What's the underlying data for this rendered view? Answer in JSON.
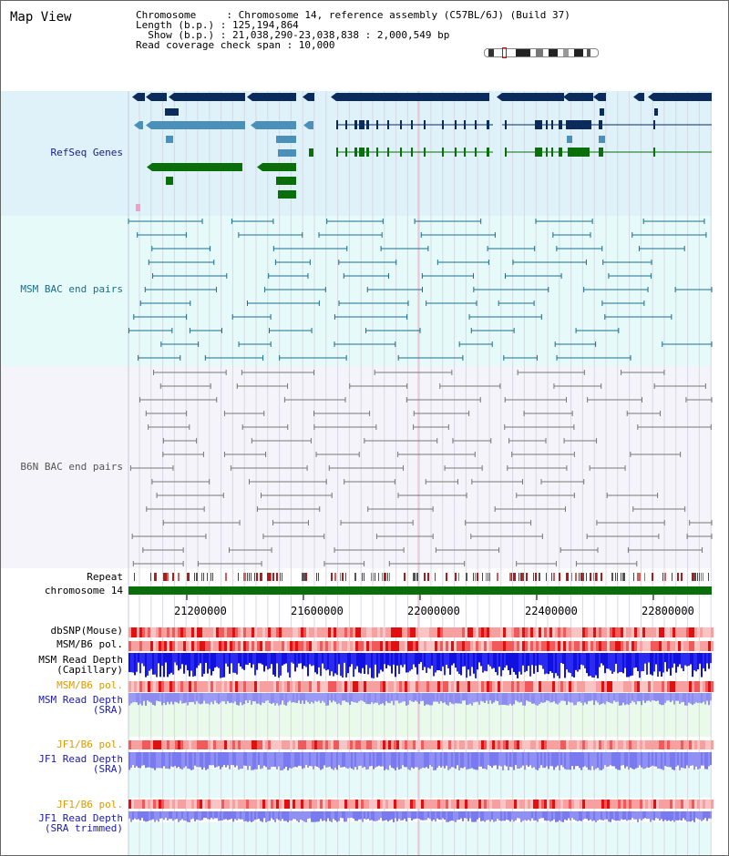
{
  "title": "Map View",
  "header": {
    "line1": "Chromosome     : Chromosome 14, reference assembly (C57BL/6J) (Build 37)",
    "line2": "Length (b.p.) : 125,194,864",
    "line3": "  Show (b.p.) : 21,038,290-23,038,838 : 2,000,549 bp",
    "line4": "Read coverage check span : 10,000"
  },
  "tracks": {
    "refseq": "RefSeq Genes",
    "msm_bac": "MSM BAC end pairs",
    "b6n_bac": "B6N BAC end pairs",
    "repeat": "Repeat",
    "chromosome": "chromosome 14",
    "dbsnp": "dbSNP(Mouse)",
    "msm_b6_pol_1": "MSM/B6 pol.",
    "msm_depth_cap_1": "MSM Read Depth",
    "msm_depth_cap_2": "(Capillary)",
    "msm_b6_pol_2": "MSM/B6 pol.",
    "msm_depth_sra_1": "MSM Read Depth",
    "msm_depth_sra_2": "(SRA)",
    "jf1_b6_pol_1": "JF1/B6 pol.",
    "jf1_depth_sra_1": "JF1 Read Depth",
    "jf1_depth_sra_2": "(SRA)",
    "jf1_b6_pol_2": "JF1/B6 pol.",
    "jf1_depth_trim_1": "JF1 Read Depth",
    "jf1_depth_trim_2": "(SRA trimmed)"
  },
  "axis": {
    "ticks": [
      "21200000",
      "21600000",
      "22000000",
      "22400000",
      "22800000"
    ]
  },
  "colors": {
    "refseq_bg": "#dff2fa",
    "msm_bg": "#e6fafa",
    "b6n_bg": "#f4f4fa",
    "gene_dark": "#0a2b5c",
    "gene_mid": "#4a90b8",
    "gene_green": "#0a6e0a",
    "msm_line": "#1a6e8e",
    "b6n_line": "#777777",
    "chrom": "#0a6e0a",
    "label_navy": "#1a1a8c",
    "label_teal": "#1a6e8e",
    "label_gray": "#555555",
    "label_orange": "#e09a00",
    "label_blue": "#1a1aaa"
  }
}
